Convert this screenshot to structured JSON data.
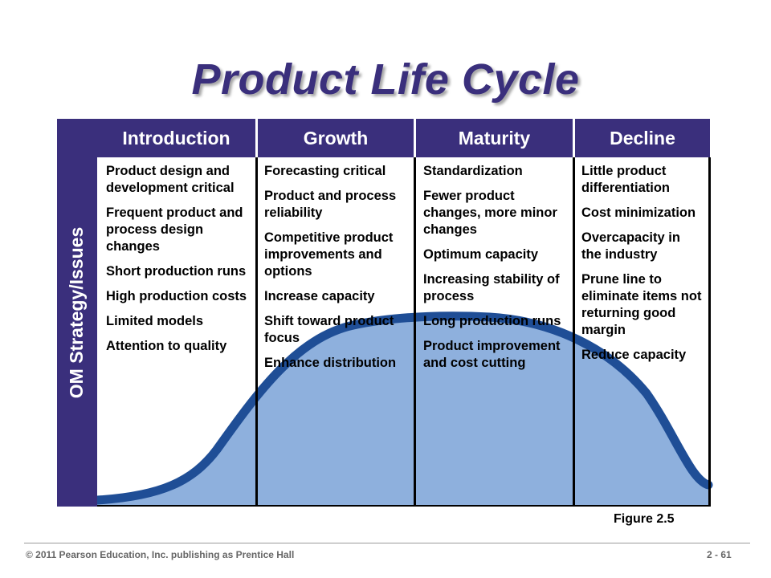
{
  "title": "Product Life Cycle",
  "side_label": "OM Strategy/Issues",
  "stages": [
    {
      "name": "Introduction",
      "items": [
        "Product design and development critical",
        "Frequent product and process design changes",
        "Short production runs",
        "High production costs",
        "Limited models",
        "Attention to quality"
      ]
    },
    {
      "name": "Growth",
      "items": [
        "Forecasting critical",
        "Product and process reliability",
        "Competitive product improvements and options",
        "Increase capacity",
        "Shift toward product focus",
        "Enhance distribution"
      ]
    },
    {
      "name": "Maturity",
      "items": [
        "Standardization",
        "Fewer product changes, more minor changes",
        "Optimum capacity",
        "Increasing stability of process",
        "Long production runs",
        "Product improvement and cost cutting"
      ]
    },
    {
      "name": "Decline",
      "items": [
        "Little product differentiation",
        "Cost minimization",
        "Overcapacity in the industry",
        "Prune line to eliminate items not returning good margin",
        "Reduce capacity"
      ]
    }
  ],
  "figure_label": "Figure 2.5",
  "footer": {
    "copyright": "© 2011 Pearson Education, Inc. publishing as Prentice Hall",
    "page": "2 - 61"
  },
  "colors": {
    "header": "#3a2f7c",
    "curve_stroke": "#1f4e96",
    "curve_fill": "#8eb0dd"
  }
}
